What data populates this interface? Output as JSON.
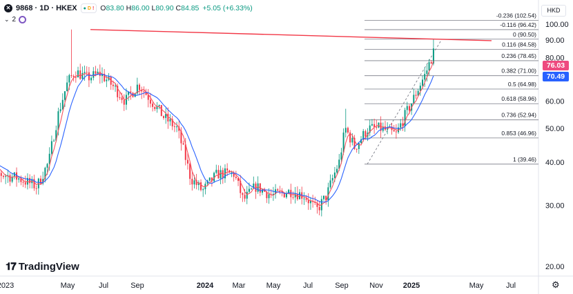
{
  "header": {
    "symbol": "9868 · 1D · HKEX",
    "flags": [
      "D",
      "!"
    ],
    "ohlc": {
      "open_label": "O",
      "open": "83.80",
      "high_label": "H",
      "high": "86.00",
      "low_label": "L",
      "low": "80.90",
      "close_label": "C",
      "close": "84.85"
    },
    "change": "+5.05 (+6.33%)",
    "indicator_count": "2"
  },
  "currency": "HKD",
  "badges": [
    {
      "value": "76.03",
      "price": 76.03,
      "color": "#ee4a7f"
    },
    {
      "value": "70.49",
      "price": 70.49,
      "color": "#2962ff"
    }
  ],
  "brand": "TradingView",
  "colors": {
    "up": "#089981",
    "down": "#f23645",
    "trendline": "#f23645",
    "ma_fast": "#f7525f",
    "ma_slow": "#2962ff",
    "fib": "#787b86"
  },
  "chart_data": {
    "type": "candlestick",
    "y_axis": {
      "ticks": [
        20.0,
        30.0,
        40.0,
        50.0,
        60.0,
        70.0,
        80.0,
        90.0,
        100.0
      ],
      "range": [
        17,
        107
      ]
    },
    "x_axis": {
      "labels": [
        "2023",
        "May",
        "Jul",
        "Sep",
        "2024",
        "Mar",
        "May",
        "Jul",
        "Sep",
        "Nov",
        "2025",
        "May",
        "Jul"
      ],
      "range": [
        "2023-03-01",
        "2025-08-31"
      ]
    },
    "close_series": [
      [
        "2023-03-01",
        41
      ],
      [
        "2023-04-01",
        37
      ],
      [
        "2023-05-01",
        36
      ],
      [
        "2023-06-01",
        34
      ],
      [
        "2023-06-20",
        40
      ],
      [
        "2023-07-05",
        55
      ],
      [
        "2023-07-20",
        68
      ],
      [
        "2023-08-01",
        73
      ],
      [
        "2023-08-20",
        70
      ],
      [
        "2023-09-10",
        72
      ],
      [
        "2023-10-01",
        66
      ],
      [
        "2023-10-20",
        60
      ],
      [
        "2023-11-10",
        67
      ],
      [
        "2023-12-01",
        60
      ],
      [
        "2023-12-20",
        54
      ],
      [
        "2024-01-10",
        50
      ],
      [
        "2024-02-01",
        36
      ],
      [
        "2024-02-20",
        33
      ],
      [
        "2024-03-15",
        37
      ],
      [
        "2024-04-10",
        37
      ],
      [
        "2024-04-25",
        31
      ],
      [
        "2024-05-15",
        34
      ],
      [
        "2024-06-10",
        32
      ],
      [
        "2024-07-10",
        33
      ],
      [
        "2024-08-01",
        32
      ],
      [
        "2024-08-20",
        29
      ],
      [
        "2024-09-05",
        32
      ],
      [
        "2024-09-25",
        40
      ],
      [
        "2024-10-05",
        50
      ],
      [
        "2024-10-20",
        44
      ],
      [
        "2024-11-10",
        50
      ],
      [
        "2024-12-01",
        50
      ],
      [
        "2024-12-25",
        48
      ],
      [
        "2025-01-20",
        60
      ],
      [
        "2025-02-10",
        72
      ],
      [
        "2025-02-25",
        85
      ]
    ],
    "moving_averages": [
      {
        "name": "MA fast",
        "color": "#f7525f"
      },
      {
        "name": "MA slow",
        "color": "#2962ff"
      }
    ],
    "trendline": {
      "from": [
        "2023-06-25",
        96.5
      ],
      "to": [
        "2025-05-05",
        89.6
      ]
    },
    "fib_retracement": [
      {
        "label": "-0.236 (102.54)",
        "price": 102.54
      },
      {
        "label": "-0.116 (96.42)",
        "price": 96.42
      },
      {
        "label": "0 (90.50)",
        "price": 90.5
      },
      {
        "label": "0.116 (84.58)",
        "price": 84.58
      },
      {
        "label": "0.236 (78.45)",
        "price": 78.45
      },
      {
        "label": "0.382 (71.00)",
        "price": 71.0
      },
      {
        "label": "0.5 (64.98)",
        "price": 64.98
      },
      {
        "label": "0.618 (58.96)",
        "price": 58.96
      },
      {
        "label": "0.736 (52.94)",
        "price": 52.94
      },
      {
        "label": "0.853 (46.96)",
        "price": 46.96
      },
      {
        "label": "1 (39.46)",
        "price": 39.46
      }
    ],
    "fib_span": [
      "2024-10-01",
      "2025-08-15"
    ],
    "fib_connector": {
      "from": [
        "2024-10-10",
        39.46
      ],
      "to": [
        "2025-02-25",
        90.5
      ]
    }
  }
}
